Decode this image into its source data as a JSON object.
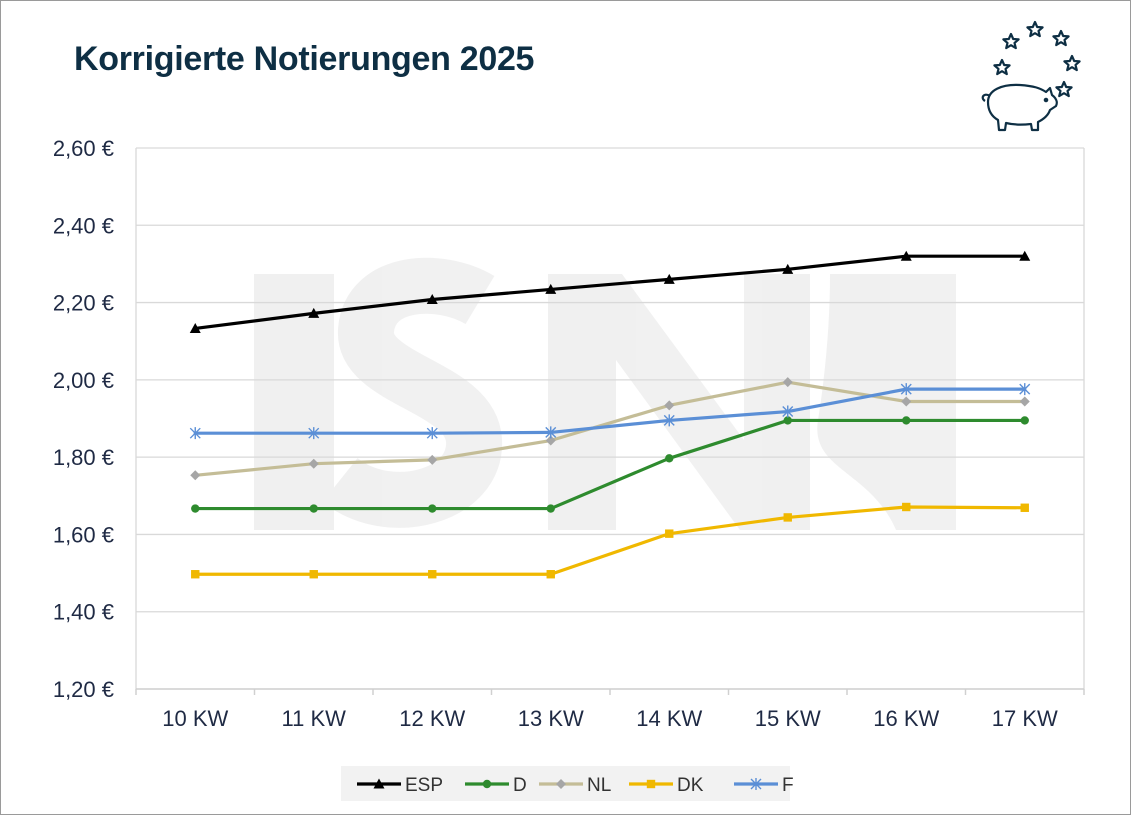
{
  "chart_data": {
    "type": "line",
    "title": "Korrigierte Notierungen 2025",
    "xlabel": "",
    "ylabel": "",
    "categories": [
      "10 KW",
      "11 KW",
      "12 KW",
      "13 KW",
      "14 KW",
      "15 KW",
      "16 KW",
      "17 KW"
    ],
    "ylim": [
      1.2,
      2.6
    ],
    "yticks": [
      1.2,
      1.4,
      1.6,
      1.8,
      2.0,
      2.2,
      2.4,
      2.6
    ],
    "ytick_labels": [
      "1,20 €",
      "1,40 €",
      "1,60 €",
      "1,80 €",
      "2,00 €",
      "2,20 €",
      "2,40 €",
      "2,60 €"
    ],
    "grid": true,
    "legend_position": "bottom",
    "series": [
      {
        "name": "ESP",
        "color": "#000000",
        "marker": "triangle",
        "values": [
          2.133,
          2.172,
          2.208,
          2.234,
          2.26,
          2.286,
          2.32,
          2.32
        ]
      },
      {
        "name": "D",
        "color": "#2e8b2e",
        "marker": "circle",
        "values": [
          1.667,
          1.667,
          1.667,
          1.667,
          1.797,
          1.895,
          1.895,
          1.895
        ]
      },
      {
        "name": "NL",
        "color": "#c4bd97",
        "marker": "diamond",
        "marker_color": "#a6a6a6",
        "values": [
          1.753,
          1.783,
          1.793,
          1.843,
          1.934,
          1.994,
          1.944,
          1.944
        ]
      },
      {
        "name": "DK",
        "color": "#f0b800",
        "marker": "square",
        "values": [
          1.497,
          1.497,
          1.497,
          1.497,
          1.602,
          1.644,
          1.671,
          1.669
        ]
      },
      {
        "name": "F",
        "color": "#5b8fd6",
        "marker": "asterisk",
        "values": [
          1.862,
          1.862,
          1.862,
          1.864,
          1.895,
          1.918,
          1.976,
          1.976
        ]
      }
    ]
  },
  "logo": {
    "name": "ISN",
    "icon": "pig-with-stars-icon",
    "color": "#0e2f44"
  }
}
